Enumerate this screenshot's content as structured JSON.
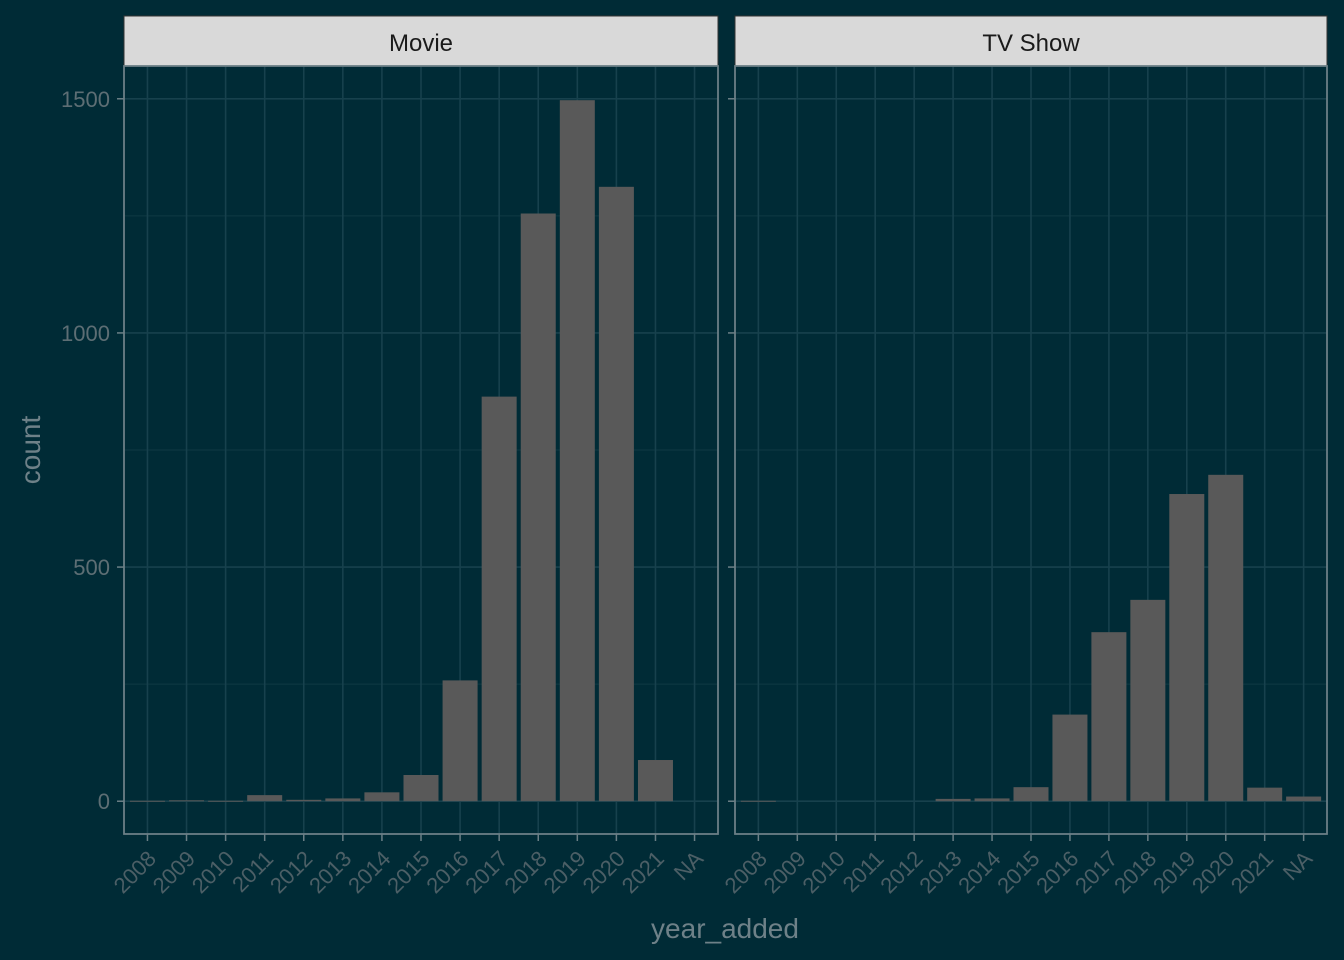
{
  "chart_data": {
    "type": "bar",
    "facets": [
      "Movie",
      "TV Show"
    ],
    "categories": [
      "2008",
      "2009",
      "2010",
      "2011",
      "2012",
      "2013",
      "2014",
      "2015",
      "2016",
      "2017",
      "2018",
      "2019",
      "2020",
      "2021",
      "NA"
    ],
    "series": [
      {
        "name": "Movie",
        "values": [
          1,
          2,
          1,
          13,
          3,
          6,
          19,
          56,
          258,
          864,
          1255,
          1497,
          1312,
          88,
          null
        ]
      },
      {
        "name": "TV Show",
        "values": [
          1,
          null,
          null,
          null,
          null,
          5,
          6,
          30,
          185,
          361,
          430,
          656,
          697,
          29,
          10
        ]
      }
    ],
    "title": "",
    "xlabel": "year_added",
    "ylabel": "count",
    "ylim": [
      -70,
      1570
    ],
    "y_ticks": [
      "0",
      "500",
      "1000",
      "1500"
    ],
    "grid": true,
    "legend": "none"
  },
  "theme": {
    "background": "#002b36",
    "bar_color": "#595959",
    "strip_fill": "#d9d9d9",
    "strip_text": "#1a1a1a"
  }
}
